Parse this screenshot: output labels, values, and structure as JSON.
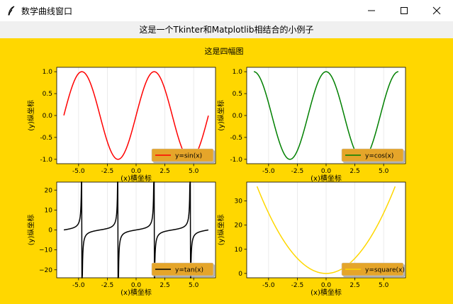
{
  "window": {
    "title": "数学曲线窗口",
    "app_icon": "feather-icon",
    "minimize_icon": "minimize-icon",
    "maximize_icon": "maximize-icon",
    "close_icon": "close-icon"
  },
  "label": {
    "text": "这是一个Tkinter和Matplotlib相结合的小例子"
  },
  "figure": {
    "background": "#FFD700",
    "legend_bg": "#E5A52A",
    "title": "这是四幅图"
  },
  "chart_data": [
    {
      "type": "line",
      "function": "sin",
      "x_range": [
        -6.28,
        6.28
      ],
      "series": [
        {
          "name": "y=sin(x)",
          "color": "#FF0000"
        }
      ],
      "xlabel": "(x)横坐标",
      "ylabel": "(y)纵坐标",
      "xlim": [
        -6.9,
        6.9
      ],
      "ylim": [
        -1.1,
        1.1
      ],
      "xticks": [
        -5.0,
        -2.5,
        0.0,
        2.5,
        5.0
      ],
      "xtick_labels": [
        "-5.0",
        "-2.5",
        "0.0",
        "2.5",
        "5.0"
      ],
      "yticks": [
        -1.0,
        -0.5,
        0.0,
        0.5,
        1.0
      ],
      "ytick_labels": [
        "-1.0",
        "-0.5",
        "0.0",
        "0.5",
        "1.0"
      ],
      "grid": true,
      "legend": "lower-right"
    },
    {
      "type": "line",
      "function": "cos",
      "x_range": [
        -6.28,
        6.28
      ],
      "series": [
        {
          "name": "y=cos(x)",
          "color": "#008000"
        }
      ],
      "xlabel": "(x)横坐标",
      "ylabel": "(y)纵坐标",
      "xlim": [
        -6.9,
        6.9
      ],
      "ylim": [
        -1.1,
        1.1
      ],
      "xticks": [
        -5.0,
        -2.5,
        0.0,
        2.5,
        5.0
      ],
      "xtick_labels": [
        "-5.0",
        "-2.5",
        "0.0",
        "2.5",
        "5.0"
      ],
      "yticks": [
        -1.0,
        -0.5,
        0.0,
        0.5,
        1.0
      ],
      "ytick_labels": [
        "-1.0",
        "-0.5",
        "0.0",
        "0.5",
        "1.0"
      ],
      "grid": true,
      "legend": "lower-right"
    },
    {
      "type": "line",
      "function": "tan",
      "x_range": [
        -6.28,
        6.28
      ],
      "series": [
        {
          "name": "y=tan(x)",
          "color": "#000000"
        }
      ],
      "xlabel": "(x)横坐标",
      "ylabel": "(y)纵坐标",
      "xlim": [
        -6.9,
        6.9
      ],
      "ylim": [
        -24,
        24
      ],
      "xticks": [
        -5.0,
        -2.5,
        0.0,
        2.5,
        5.0
      ],
      "xtick_labels": [
        "-5.0",
        "-2.5",
        "0.0",
        "2.5",
        "5.0"
      ],
      "yticks": [
        -20,
        -10,
        0,
        10,
        20
      ],
      "ytick_labels": [
        "−20",
        "−10",
        "0",
        "10",
        "20"
      ],
      "grid": true,
      "legend": "lower-right"
    },
    {
      "type": "line",
      "function": "square",
      "x_range": [
        -6.0,
        6.0
      ],
      "series": [
        {
          "name": "y=square(x)",
          "color": "#FFD700"
        }
      ],
      "xlabel": "(x)横坐标",
      "ylabel": "(y)纵坐标",
      "xlim": [
        -6.9,
        6.9
      ],
      "ylim": [
        -1.8,
        37.8
      ],
      "xticks": [
        -5.0,
        -2.5,
        0.0,
        2.5,
        5.0
      ],
      "xtick_labels": [
        "-5.0",
        "-2.5",
        "0.0",
        "2.5",
        "5.0"
      ],
      "yticks": [
        0,
        10,
        20,
        30
      ],
      "ytick_labels": [
        "0",
        "10",
        "20",
        "30"
      ],
      "grid": true,
      "legend": "lower-right"
    }
  ]
}
